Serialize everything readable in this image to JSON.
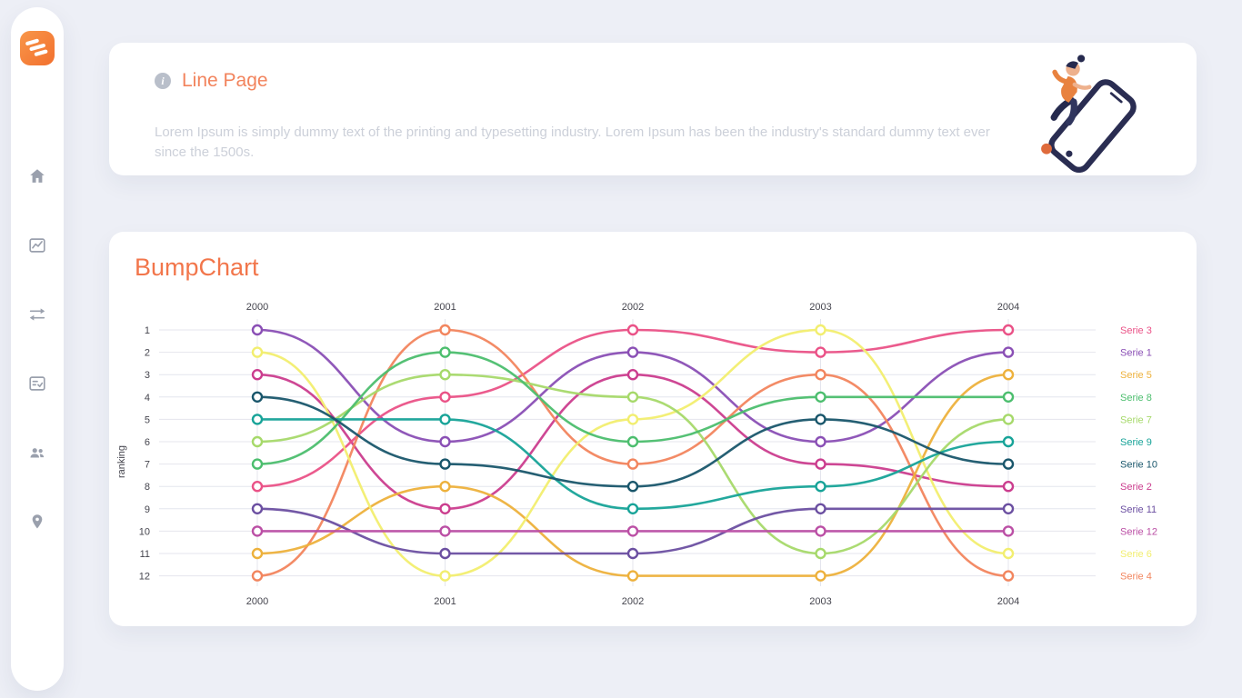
{
  "app": {
    "background": "#edeff6",
    "accent": "#f2764b"
  },
  "sidebar": {
    "logo": {
      "name": "brand-logo",
      "color": "#f4793b"
    },
    "items": [
      {
        "icon": "home-icon"
      },
      {
        "icon": "line-chart-icon"
      },
      {
        "icon": "swap-arrows-icon"
      },
      {
        "icon": "report-icon"
      },
      {
        "icon": "users-icon"
      },
      {
        "icon": "location-pin-icon"
      }
    ]
  },
  "header_card": {
    "info_icon": "i",
    "title": "Line Page",
    "description": "Lorem Ipsum is simply dummy text of the printing and typesetting industry. Lorem Ipsum has been the industry's standard dummy text ever since the 1500s.",
    "illustration": "person-jumping-over-phone"
  },
  "chart_card": {
    "title": "BumpChart"
  },
  "chart_data": {
    "type": "line",
    "subtype": "bump",
    "title": "BumpChart",
    "x": [
      2000,
      2001,
      2002,
      2003,
      2004
    ],
    "xlabel": "",
    "ylabel": "ranking",
    "yticks": [
      1,
      2,
      3,
      4,
      5,
      6,
      7,
      8,
      9,
      10,
      11,
      12
    ],
    "y_inverted": true,
    "grid": true,
    "legend_position": "right",
    "axis_text_color": "#45454e",
    "grid_color": "#e4e5ed",
    "series": [
      {
        "name": "Serie 1",
        "color": "#8a4fb5",
        "ranks": [
          1,
          6,
          2,
          6,
          2
        ]
      },
      {
        "name": "Serie 2",
        "color": "#cb3d8e",
        "ranks": [
          3,
          9,
          3,
          7,
          8
        ]
      },
      {
        "name": "Serie 3",
        "color": "#ea5287",
        "ranks": [
          8,
          4,
          1,
          2,
          1
        ]
      },
      {
        "name": "Serie 4",
        "color": "#f2855e",
        "ranks": [
          12,
          1,
          7,
          3,
          12
        ]
      },
      {
        "name": "Serie 5",
        "color": "#edb13c",
        "ranks": [
          11,
          8,
          12,
          12,
          3
        ]
      },
      {
        "name": "Serie 6",
        "color": "#f2ee6f",
        "ranks": [
          2,
          12,
          5,
          1,
          11
        ]
      },
      {
        "name": "Serie 7",
        "color": "#a6d96a",
        "ranks": [
          6,
          3,
          4,
          11,
          5
        ]
      },
      {
        "name": "Serie 8",
        "color": "#4cbe6e",
        "ranks": [
          7,
          2,
          6,
          4,
          4
        ]
      },
      {
        "name": "Serie 9",
        "color": "#17a398",
        "ranks": [
          5,
          5,
          9,
          8,
          6
        ]
      },
      {
        "name": "Serie 10",
        "color": "#19566b",
        "ranks": [
          4,
          7,
          8,
          5,
          7
        ]
      },
      {
        "name": "Serie 11",
        "color": "#6b4fa1",
        "ranks": [
          9,
          11,
          11,
          9,
          9
        ]
      },
      {
        "name": "Serie 12",
        "color": "#bb4fa5",
        "ranks": [
          10,
          10,
          10,
          10,
          10
        ]
      }
    ]
  }
}
